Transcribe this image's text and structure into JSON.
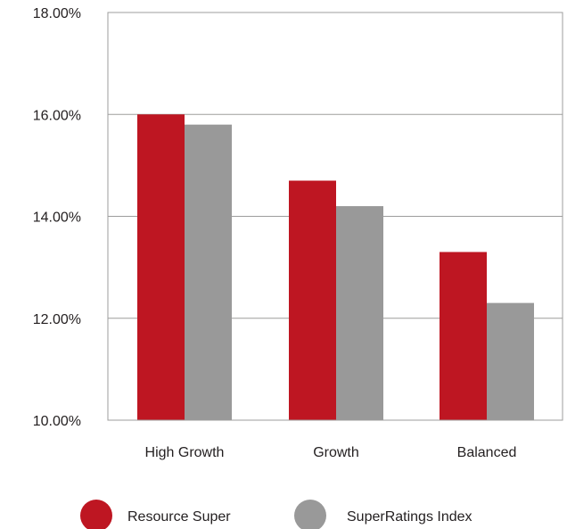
{
  "chart_data": {
    "type": "bar",
    "categories": [
      "High Growth",
      "Growth",
      "Balanced"
    ],
    "series": [
      {
        "name": "Resource Super",
        "color": "#be1622",
        "values": [
          16.0,
          14.7,
          13.3
        ]
      },
      {
        "name": "SuperRatings Index",
        "color": "#999999",
        "values": [
          15.8,
          14.2,
          12.3
        ]
      }
    ],
    "ylim": [
      10,
      18
    ],
    "yticks": [
      10,
      12,
      14,
      16,
      18
    ],
    "ytick_labels": [
      "10.00%",
      "12.00%",
      "14.00%",
      "16.00%",
      "18.00%"
    ],
    "grid": true,
    "legend_position": "bottom",
    "title": "",
    "xlabel": "",
    "ylabel": ""
  }
}
